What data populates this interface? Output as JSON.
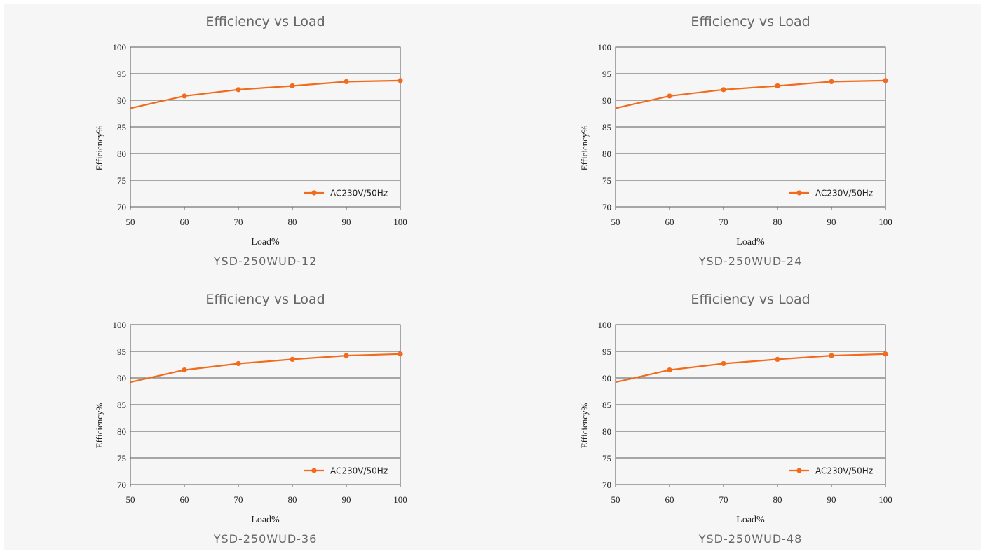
{
  "colors": {
    "background": "#f6f6f6",
    "series": "#f26a1b",
    "grid": "#555555",
    "title_text": "#666666",
    "tick_text": "#222222"
  },
  "chart_data": [
    {
      "type": "line",
      "title": "Efficiency vs Load",
      "caption": "YSD-250WUD-12",
      "xlabel": "Load%",
      "ylabel": "Efficiency%",
      "xlim": [
        50,
        100
      ],
      "ylim": [
        70,
        100
      ],
      "x_ticks": [
        "50",
        "60",
        "70",
        "80",
        "90",
        "100"
      ],
      "y_ticks": [
        "70",
        "75",
        "80",
        "85",
        "90",
        "95",
        "100"
      ],
      "grid": "horizontal",
      "legend_position": "bottom-right",
      "series": [
        {
          "name": "AC230V/50Hz",
          "line": [
            [
              50,
              88.5
            ],
            [
              60,
              90.8
            ],
            [
              70,
              92.0
            ],
            [
              80,
              92.7
            ],
            [
              90,
              93.5
            ],
            [
              100,
              93.7
            ]
          ],
          "markers": [
            [
              60,
              90.8
            ],
            [
              70,
              92.0
            ],
            [
              80,
              92.7
            ],
            [
              90,
              93.5
            ],
            [
              100,
              93.7
            ]
          ]
        }
      ]
    },
    {
      "type": "line",
      "title": "Efficiency vs Load",
      "caption": "YSD-250WUD-24",
      "xlabel": "Load%",
      "ylabel": "Efficiency%",
      "xlim": [
        50,
        100
      ],
      "ylim": [
        70,
        100
      ],
      "x_ticks": [
        "50",
        "60",
        "70",
        "80",
        "90",
        "100"
      ],
      "y_ticks": [
        "70",
        "75",
        "80",
        "85",
        "90",
        "95",
        "100"
      ],
      "grid": "horizontal",
      "legend_position": "bottom-right",
      "series": [
        {
          "name": "AC230V/50Hz",
          "line": [
            [
              50,
              88.5
            ],
            [
              60,
              90.8
            ],
            [
              70,
              92.0
            ],
            [
              80,
              92.7
            ],
            [
              90,
              93.5
            ],
            [
              100,
              93.7
            ]
          ],
          "markers": [
            [
              60,
              90.8
            ],
            [
              70,
              92.0
            ],
            [
              80,
              92.7
            ],
            [
              90,
              93.5
            ],
            [
              100,
              93.7
            ]
          ]
        }
      ]
    },
    {
      "type": "line",
      "title": "Efficiency vs Load",
      "caption": "YSD-250WUD-36",
      "xlabel": "Load%",
      "ylabel": "Efficiency%",
      "xlim": [
        50,
        100
      ],
      "ylim": [
        70,
        100
      ],
      "x_ticks": [
        "50",
        "60",
        "70",
        "80",
        "90",
        "100"
      ],
      "y_ticks": [
        "70",
        "75",
        "80",
        "85",
        "90",
        "95",
        "100"
      ],
      "grid": "horizontal",
      "legend_position": "bottom-right",
      "series": [
        {
          "name": "AC230V/50Hz",
          "line": [
            [
              50,
              89.2
            ],
            [
              60,
              91.5
            ],
            [
              70,
              92.7
            ],
            [
              80,
              93.5
            ],
            [
              90,
              94.2
            ],
            [
              100,
              94.5
            ]
          ],
          "markers": [
            [
              60,
              91.5
            ],
            [
              70,
              92.7
            ],
            [
              80,
              93.5
            ],
            [
              90,
              94.2
            ],
            [
              100,
              94.5
            ]
          ]
        }
      ]
    },
    {
      "type": "line",
      "title": "Efficiency vs Load",
      "caption": "YSD-250WUD-48",
      "xlabel": "Load%",
      "ylabel": "Efficiency%",
      "xlim": [
        50,
        100
      ],
      "ylim": [
        70,
        100
      ],
      "x_ticks": [
        "50",
        "60",
        "70",
        "80",
        "90",
        "100"
      ],
      "y_ticks": [
        "70",
        "75",
        "80",
        "85",
        "90",
        "95",
        "100"
      ],
      "grid": "horizontal",
      "legend_position": "bottom-right",
      "series": [
        {
          "name": "AC230V/50Hz",
          "line": [
            [
              50,
              89.2
            ],
            [
              60,
              91.5
            ],
            [
              70,
              92.7
            ],
            [
              80,
              93.5
            ],
            [
              90,
              94.2
            ],
            [
              100,
              94.5
            ]
          ],
          "markers": [
            [
              60,
              91.5
            ],
            [
              70,
              92.7
            ],
            [
              80,
              93.5
            ],
            [
              90,
              94.2
            ],
            [
              100,
              94.5
            ]
          ]
        }
      ]
    }
  ]
}
